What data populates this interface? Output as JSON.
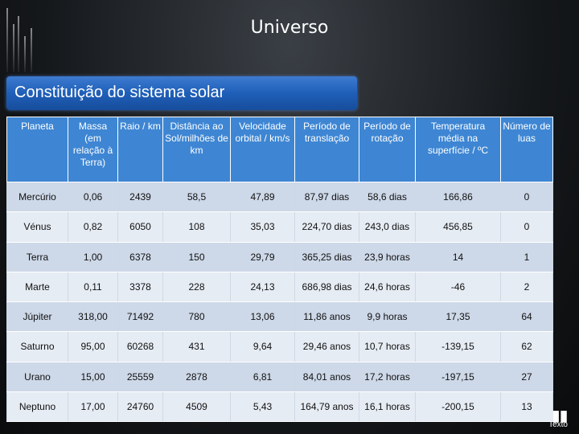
{
  "header": {
    "title": "Universo"
  },
  "banner": {
    "title": "Constituição do sistema solar"
  },
  "table": {
    "columns": [
      "Planeta",
      "Massa (em relação à Terra)",
      "Raio / km",
      "Distância ao Sol/milhões de km",
      "Velocidade orbital / km/s",
      "Período de translação",
      "Período de rotação",
      "Temperatura média na superfície / ºC",
      "Número de luas"
    ],
    "rows": [
      [
        "Mercúrio",
        "0,06",
        "2439",
        "58,5",
        "47,89",
        "87,97 dias",
        "58,6 dias",
        "166,86",
        "0"
      ],
      [
        "Vénus",
        "0,82",
        "6050",
        "108",
        "35,03",
        "224,70 dias",
        "243,0 dias",
        "456,85",
        "0"
      ],
      [
        "Terra",
        "1,00",
        "6378",
        "150",
        "29,79",
        "365,25 dias",
        "23,9 horas",
        "14",
        "1"
      ],
      [
        "Marte",
        "0,11",
        "3378",
        "228",
        "24,13",
        "686,98 dias",
        "24,6 horas",
        "-46",
        "2"
      ],
      [
        "Júpiter",
        "318,00",
        "71492",
        "780",
        "13,06",
        "11,86 anos",
        "9,9 horas",
        "17,35",
        "64"
      ],
      [
        "Saturno",
        "95,00",
        "60268",
        "431",
        "9,64",
        "29,46 anos",
        "10,7 horas",
        "-139,15",
        "62"
      ],
      [
        "Urano",
        "15,00",
        "25559",
        "2878",
        "6,81",
        "84,01 anos",
        "17,2 horas",
        "-197,15",
        "27"
      ],
      [
        "Neptuno",
        "17,00",
        "24760",
        "4509",
        "5,43",
        "164,79 anos",
        "16,1 horas",
        "-200,15",
        "13"
      ]
    ]
  },
  "logo": {
    "text": "Texto"
  },
  "colors": {
    "header_bg": "#3e86d3",
    "row_odd": "#cdd8e8",
    "row_even": "#e6ecf4",
    "banner": "#1f5fb8"
  }
}
